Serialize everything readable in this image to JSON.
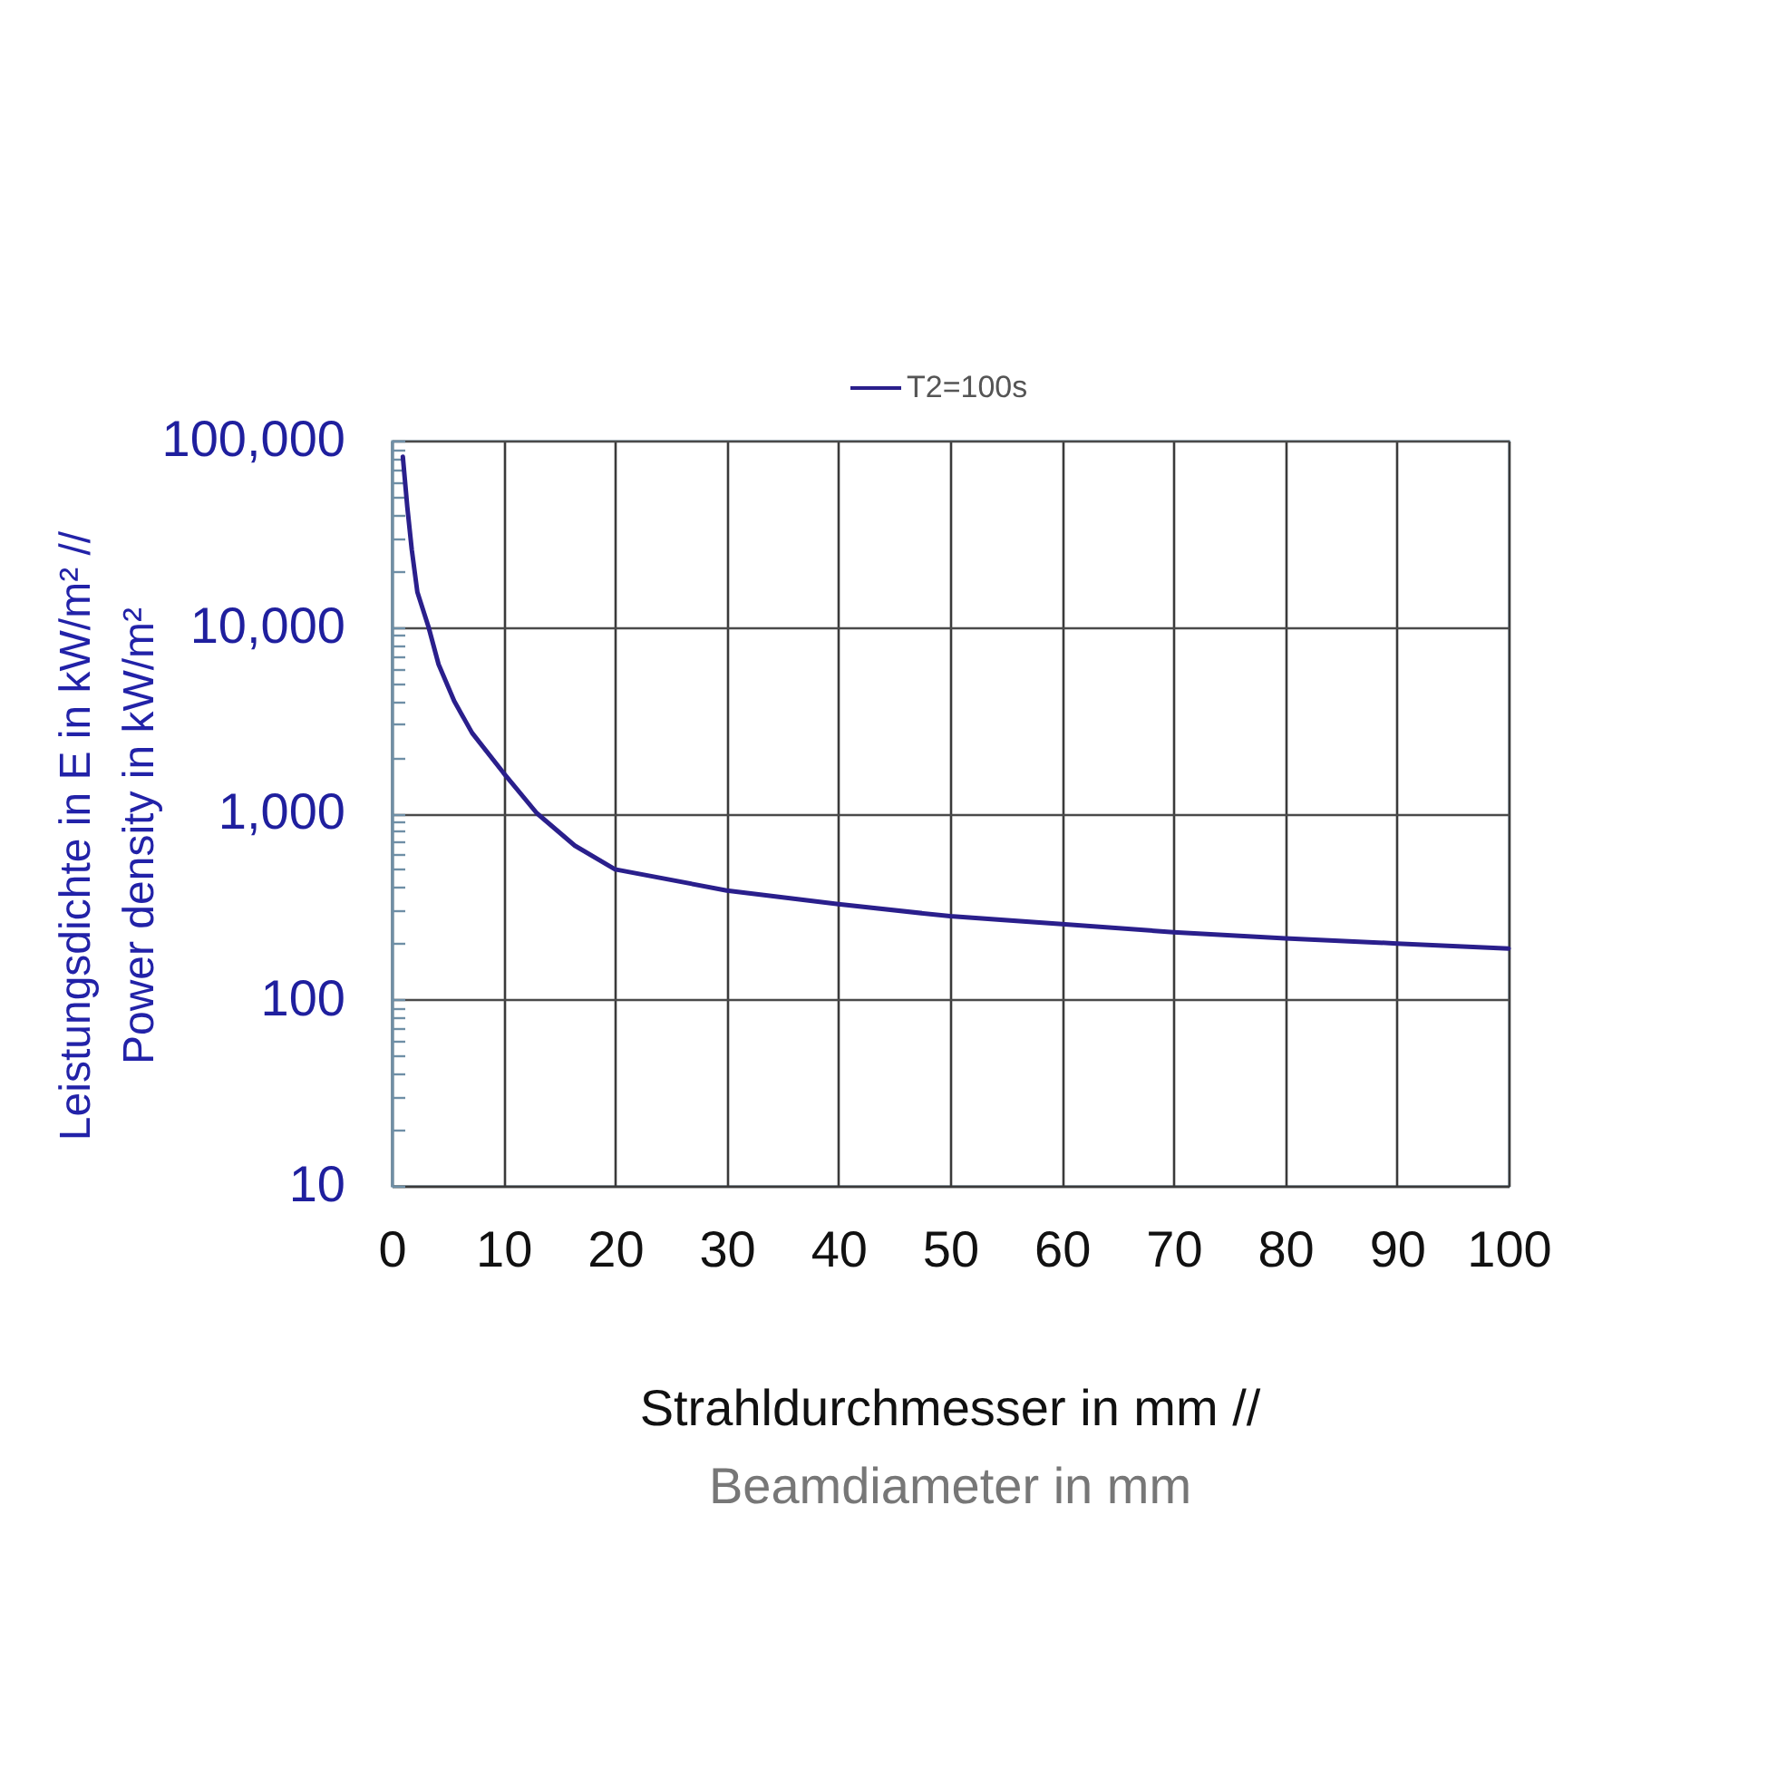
{
  "chart_data": {
    "type": "line",
    "xlabel": "Strahldurchmesser in mm //\nBeamdiameter in mm",
    "ylabel": "Leistungsdichte in E in kW/m² //\nPower density in kW/m²",
    "x": [
      1,
      1.4,
      1.8,
      2.3,
      3.3,
      4.2,
      5.6,
      7.2,
      10,
      13,
      16.4,
      20,
      30,
      40,
      50,
      60,
      70,
      80,
      90,
      100
    ],
    "series": [
      {
        "name": "T2=100s",
        "color": "#2a1f8c",
        "values": [
          82000,
          44000,
          26000,
          15400,
          10000,
          6300,
          4000,
          2700,
          1650,
          1000,
          670,
          500,
          385,
          325,
          280,
          254,
          230,
          213,
          200,
          188
        ]
      }
    ],
    "xlim": [
      0,
      100
    ],
    "xticks": [
      0,
      10,
      20,
      30,
      40,
      50,
      60,
      70,
      80,
      90,
      100
    ],
    "ylim": [
      10,
      100000
    ],
    "yticks": [
      10,
      {
        "value": 20,
        "label": null
      },
      {
        "value": 30,
        "label": null
      },
      {
        "value": 40,
        "label": null
      },
      {
        "value": 50,
        "label": null
      },
      {
        "value": 60,
        "label": null
      },
      {
        "value": 70,
        "label": null
      },
      {
        "value": 80,
        "label": null
      },
      {
        "value": 90,
        "label": null
      },
      100,
      {
        "value": 200,
        "label": null
      },
      {
        "value": 300,
        "label": null
      },
      {
        "value": 400,
        "label": null
      },
      {
        "value": 500,
        "label": null
      },
      {
        "value": 600,
        "label": null
      },
      {
        "value": 700,
        "label": null
      },
      {
        "value": 800,
        "label": null
      },
      {
        "value": 900,
        "label": null
      },
      {
        "value": 1000,
        "label": "1,000"
      },
      {
        "value": 2000,
        "label": null
      },
      {
        "value": 3000,
        "label": null
      },
      {
        "value": 4000,
        "label": null
      },
      {
        "value": 5000,
        "label": null
      },
      {
        "value": 6000,
        "label": null
      },
      {
        "value": 7000,
        "label": null
      },
      {
        "value": 8000,
        "label": null
      },
      {
        "value": 9000,
        "label": null
      },
      {
        "value": 10000,
        "label": "10,000"
      },
      {
        "value": 20000,
        "label": null
      },
      {
        "value": 30000,
        "label": null
      },
      {
        "value": 40000,
        "label": null
      },
      {
        "value": 50000,
        "label": null
      },
      {
        "value": 60000,
        "label": null
      },
      {
        "value": 70000,
        "label": null
      },
      {
        "value": 80000,
        "label": null
      },
      {
        "value": 90000,
        "label": null
      },
      {
        "value": 100000,
        "label": "100,000"
      }
    ],
    "log": "y",
    "grid": true,
    "legend": "top",
    "line_style": "solid"
  }
}
